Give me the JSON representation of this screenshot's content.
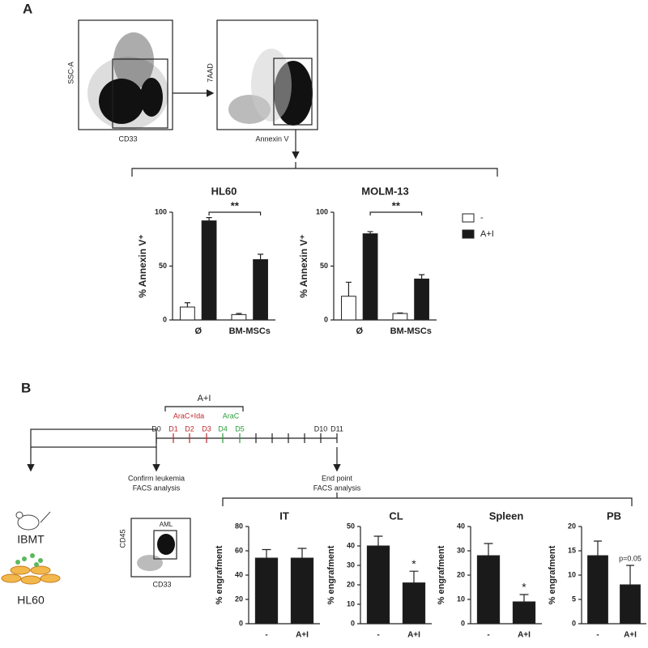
{
  "panels": [
    "A",
    "B"
  ],
  "flow": {
    "plot1": {
      "y_label": "SSC-A",
      "x_label": "CD33"
    },
    "plot2": {
      "y_label": "7AAD",
      "x_label": "Annexin V"
    },
    "plot3": {
      "y_label": "CD45",
      "x_label": "CD33",
      "gate": "AML"
    }
  },
  "timeline": {
    "treatment": "A+I",
    "drug1": "AraC+Ida",
    "drug2": "AraC",
    "days": [
      "D0",
      "D1",
      "D2",
      "D3",
      "D4",
      "D5",
      "D10",
      "D11"
    ],
    "step1": [
      "Confirm leukemia",
      "FACS analysis"
    ],
    "step2": [
      "End point",
      "FACS analysis"
    ],
    "model": "IBMT",
    "cells": "HL60"
  },
  "chart_data": [
    {
      "type": "bar",
      "title": "HL60",
      "y_label": "% Annexin V⁺",
      "categories": [
        "Ø",
        "BM-MSCs"
      ],
      "series": [
        {
          "name": "-",
          "color": "#ffffff",
          "values": [
            12,
            5
          ],
          "errors": [
            4,
            1
          ]
        },
        {
          "name": "A+I",
          "color": "#1a1a1a",
          "values": [
            92,
            56
          ],
          "errors": [
            3,
            5
          ]
        }
      ],
      "ylim": [
        0,
        100
      ],
      "yticks": [
        0,
        50,
        100
      ],
      "annotation": "**"
    },
    {
      "type": "bar",
      "title": "MOLM-13",
      "y_label": "% Annexin V⁺",
      "categories": [
        "Ø",
        "BM-MSCs"
      ],
      "series": [
        {
          "color": "#ffffff",
          "values": [
            22,
            6
          ],
          "errors": [
            13,
            0.5
          ]
        },
        {
          "color": "#1a1a1a",
          "values": [
            80,
            38
          ],
          "errors": [
            2,
            4
          ]
        }
      ],
      "ylim": [
        0,
        100
      ],
      "yticks": [
        0,
        50,
        100
      ],
      "annotation": "**"
    },
    {
      "type": "bar",
      "title": "IT",
      "y_label": "% engrafment",
      "categories": [
        "-",
        "A+I"
      ],
      "values": [
        54,
        54
      ],
      "errors": [
        7,
        8
      ],
      "color": "#1a1a1a",
      "ylim": [
        0,
        80
      ],
      "yticks": [
        0,
        20,
        40,
        60,
        80
      ]
    },
    {
      "type": "bar",
      "title": "CL",
      "y_label": "% engrafment",
      "categories": [
        "-",
        "A+I"
      ],
      "values": [
        40,
        21
      ],
      "errors": [
        5,
        6
      ],
      "color": "#1a1a1a",
      "ylim": [
        0,
        50
      ],
      "yticks": [
        0,
        10,
        20,
        30,
        40,
        50
      ],
      "annotation": "*"
    },
    {
      "type": "bar",
      "title": "Spleen",
      "y_label": "% engrafment",
      "categories": [
        "-",
        "A+I"
      ],
      "values": [
        28,
        9
      ],
      "errors": [
        5,
        3
      ],
      "color": "#1a1a1a",
      "ylim": [
        0,
        40
      ],
      "yticks": [
        0,
        10,
        20,
        30,
        40
      ],
      "annotation": "*"
    },
    {
      "type": "bar",
      "title": "PB",
      "y_label": "% engrafment",
      "categories": [
        "-",
        "A+I"
      ],
      "values": [
        14,
        8
      ],
      "errors": [
        3,
        4
      ],
      "color": "#1a1a1a",
      "ylim": [
        0,
        20
      ],
      "yticks": [
        0,
        5,
        10,
        15,
        20
      ],
      "annotation": "p=0.05"
    }
  ]
}
